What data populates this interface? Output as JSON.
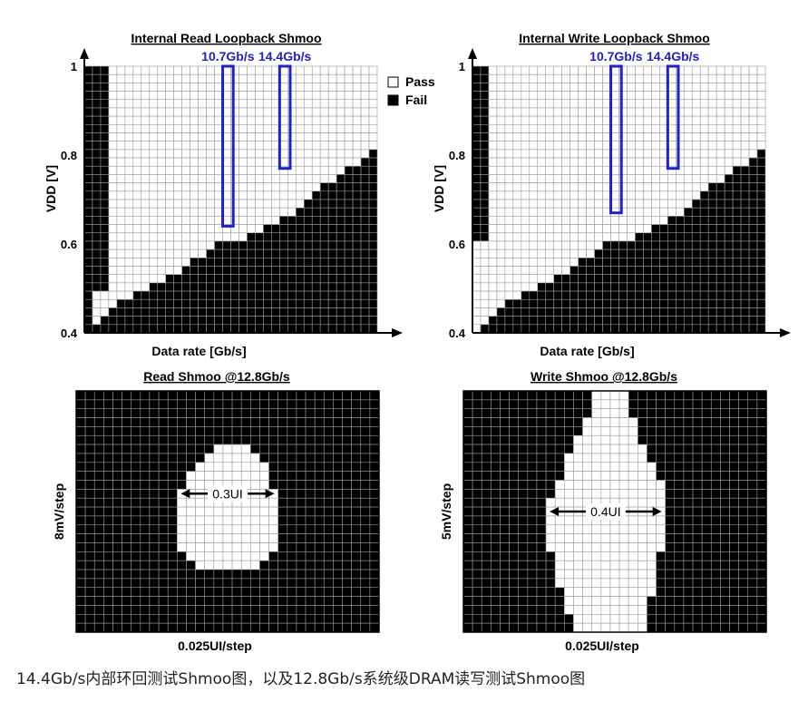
{
  "caption": "14.4Gb/s内部环回测试Shmoo图，以及12.8Gb/s系统级DRAM读写测试Shmoo图",
  "colors": {
    "pass": "#ffffff",
    "fail": "#000000",
    "grid": "#9a9a9a",
    "highlight": "#1e22c8",
    "text": "#000000"
  },
  "chart_data": [
    {
      "id": "read_loopback",
      "type": "heatmap",
      "title": "Internal Read Loopback Shmoo",
      "xlabel": "Data rate [Gb/s]",
      "ylabel": "VDD [V]",
      "y_ticks": [
        "1",
        "0.8",
        "0.6",
        "0.4"
      ],
      "y_tick_values": [
        1.0,
        0.8,
        0.6,
        0.4
      ],
      "ylim": [
        0.4,
        1.0
      ],
      "legend": [
        {
          "label": "Pass",
          "state": "pass"
        },
        {
          "label": "Fail",
          "state": "fail"
        }
      ],
      "legend_position": "top-right",
      "grid": {
        "cols": 36,
        "rows": 32
      },
      "fail_map": {
        "fail_at_or_below_vdd_per_column": [
          0.4,
          0.42,
          0.435,
          0.45,
          0.47,
          0.48,
          0.495,
          0.5,
          0.51,
          0.52,
          0.53,
          0.54,
          0.555,
          0.565,
          0.575,
          0.585,
          0.6,
          0.61,
          0.61,
          0.615,
          0.62,
          0.63,
          0.64,
          0.65,
          0.66,
          0.67,
          0.685,
          0.7,
          0.715,
          0.73,
          0.745,
          0.76,
          0.77,
          0.78,
          0.79,
          0.81
        ],
        "low_data_rate_fail_band": {
          "columns_from_left": 3,
          "fail_above_vdd": [
            0.4,
            0.5,
            0.5
          ]
        }
      },
      "highlights": [
        {
          "label": "10.7Gb/s",
          "column": 17,
          "vdd_range": [
            0.64,
            1.0
          ]
        },
        {
          "label": "14.4Gb/s",
          "column": 24,
          "vdd_range": [
            0.77,
            1.0
          ]
        }
      ]
    },
    {
      "id": "write_loopback",
      "type": "heatmap",
      "title": "Internal Write Loopback Shmoo",
      "xlabel": "Data rate [Gb/s]",
      "ylabel": "VDD [V]",
      "y_ticks": [
        "1",
        "0.8",
        "0.6",
        "0.4"
      ],
      "y_tick_values": [
        1.0,
        0.8,
        0.6,
        0.4
      ],
      "ylim": [
        0.4,
        1.0
      ],
      "grid": {
        "cols": 36,
        "rows": 32
      },
      "fail_map": {
        "fail_at_or_below_vdd_per_column": [
          0.4,
          0.42,
          0.435,
          0.45,
          0.47,
          0.48,
          0.495,
          0.5,
          0.51,
          0.52,
          0.53,
          0.54,
          0.555,
          0.565,
          0.575,
          0.585,
          0.6,
          0.61,
          0.61,
          0.615,
          0.62,
          0.63,
          0.64,
          0.65,
          0.66,
          0.67,
          0.685,
          0.7,
          0.715,
          0.73,
          0.745,
          0.76,
          0.77,
          0.78,
          0.79,
          0.81
        ],
        "low_data_rate_fail_band": {
          "columns_from_left": 2,
          "fail_above_vdd": [
            0.6,
            0.6
          ]
        }
      },
      "highlights": [
        {
          "label": "10.7Gb/s",
          "column": 17,
          "vdd_range": [
            0.67,
            1.0
          ]
        },
        {
          "label": "14.4Gb/s",
          "column": 24,
          "vdd_range": [
            0.77,
            1.0
          ]
        }
      ]
    },
    {
      "id": "read_shmoo",
      "type": "heatmap",
      "title": "Read Shmoo @12.8Gb/s",
      "xlabel": "0.025UI/step",
      "ylabel": "8mV/step",
      "grid": {
        "cols": 33,
        "rows": 27
      },
      "pass_region": {
        "row_range": [
          6,
          19
        ],
        "column_span_per_row": [
          [
            15,
            18
          ],
          [
            14,
            19
          ],
          [
            13,
            20
          ],
          [
            12,
            20
          ],
          [
            12,
            20
          ],
          [
            11,
            21
          ],
          [
            11,
            21
          ],
          [
            11,
            21
          ],
          [
            11,
            21
          ],
          [
            11,
            21
          ],
          [
            11,
            21
          ],
          [
            11,
            21
          ],
          [
            12,
            20
          ],
          [
            13,
            19
          ]
        ]
      },
      "annotation": "0.3UI"
    },
    {
      "id": "write_shmoo",
      "type": "heatmap",
      "title": "Write Shmoo @12.8Gb/s",
      "xlabel": "0.025UI/step",
      "ylabel": "5mV/step",
      "grid": {
        "cols": 33,
        "rows": 27
      },
      "pass_region": {
        "row_range": [
          0,
          26
        ],
        "column_span_per_row": [
          [
            14,
            17
          ],
          [
            14,
            17
          ],
          [
            14,
            17
          ],
          [
            13,
            18
          ],
          [
            13,
            18
          ],
          [
            12,
            18
          ],
          [
            12,
            19
          ],
          [
            11,
            19
          ],
          [
            11,
            20
          ],
          [
            11,
            20
          ],
          [
            10,
            21
          ],
          [
            10,
            21
          ],
          [
            9,
            21
          ],
          [
            9,
            21
          ],
          [
            9,
            21
          ],
          [
            9,
            21
          ],
          [
            9,
            21
          ],
          [
            9,
            21
          ],
          [
            10,
            20
          ],
          [
            10,
            20
          ],
          [
            10,
            20
          ],
          [
            10,
            20
          ],
          [
            11,
            20
          ],
          [
            11,
            19
          ],
          [
            11,
            19
          ],
          [
            12,
            19
          ],
          [
            12,
            19
          ]
        ]
      },
      "annotation": "0.4UI"
    }
  ]
}
